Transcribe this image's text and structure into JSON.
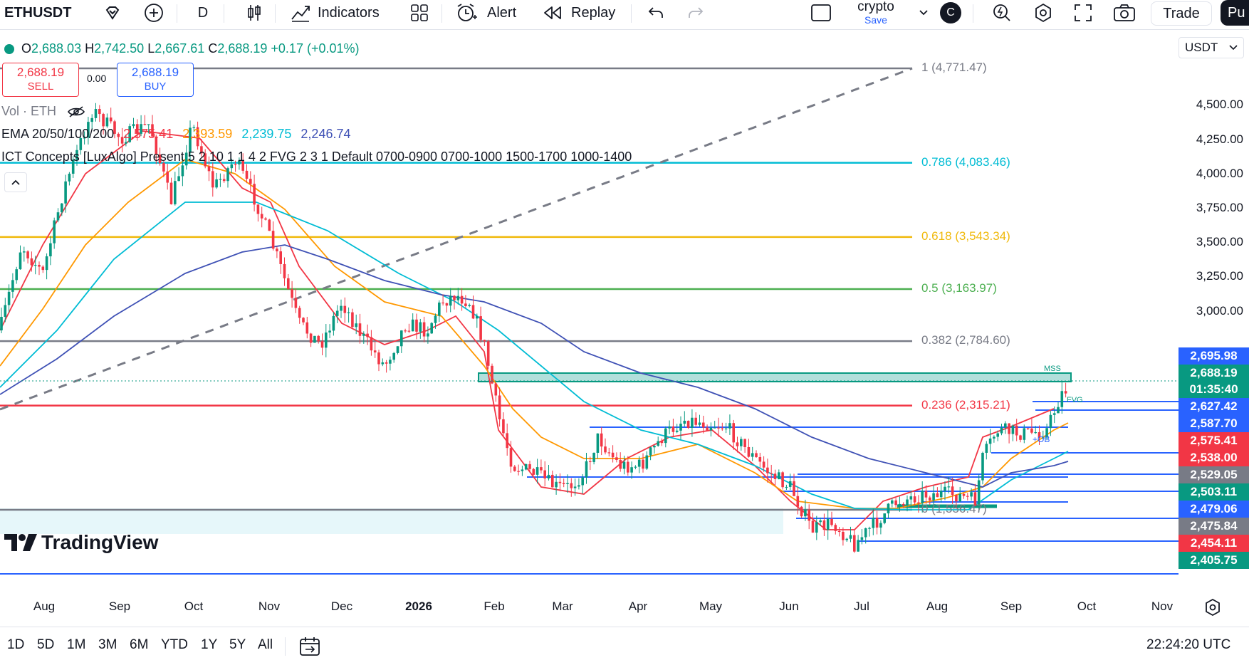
{
  "toolbar": {
    "symbol": "ETHUSDT",
    "interval": "D",
    "indicators_label": "Indicators",
    "alert_label": "Alert",
    "replay_label": "Replay",
    "layout_name": "crypto",
    "layout_save": "Save",
    "avatar_letter": "C",
    "trade_label": "Trade",
    "publish_label": "Pu"
  },
  "legend": {
    "open_k": "O",
    "open_v": "2,688.03",
    "high_k": "H",
    "high_v": "2,742.50",
    "low_k": "L",
    "low_v": "2,667.61",
    "close_k": "C",
    "close_v": "2,688.19",
    "change": "+0.17 (+0.01%)",
    "sell_price": "2,688.19",
    "sell_label": "SELL",
    "spread": "0.00",
    "buy_price": "2,688.19",
    "buy_label": "BUY",
    "vol_label": "Vol · ETH",
    "ema_label": "EMA 20/50/100/200",
    "ema_values": [
      "2,575.41",
      "2,393.59",
      "2,239.75",
      "2,246.74"
    ],
    "ict_label": "ICT Concepts [LuxAlgo] Present 5 2 10 1 1 4 2 FVG 2 3 1 Default 0700-0900 0700-1000 1500-1700 1000-1400"
  },
  "currency": "USDT",
  "fib_levels": [
    {
      "label": "1 (4,771.47)",
      "price": 4771.47,
      "color": "#787b86"
    },
    {
      "label": "0.786 (4,083.46)",
      "price": 4083.46,
      "color": "#00bcd4"
    },
    {
      "label": "0.618 (3,543.34)",
      "price": 3543.34,
      "color": "#f0b90b"
    },
    {
      "label": "0.5 (3,163.97)",
      "price": 3163.97,
      "color": "#4caf50"
    },
    {
      "label": "0.382 (2,784.60)",
      "price": 2784.6,
      "color": "#787b86"
    },
    {
      "label": "0.236 (2,315.21)",
      "price": 2315.21,
      "color": "#f23645"
    },
    {
      "label": "0 (1,556.47)",
      "price": 1556.47,
      "color": "#787b86"
    }
  ],
  "price_axis": {
    "ticks": [
      "4,500.00",
      "4,250.00",
      "4,000.00",
      "3,750.00",
      "3,500.00",
      "3,250.00",
      "3,000.00"
    ],
    "badges": [
      {
        "text": "2,695.98",
        "color": "#2962ff"
      },
      {
        "text": "2,688.19",
        "color": "#089981"
      },
      {
        "text": "01:35:40",
        "color": "#089981"
      },
      {
        "text": "2,627.42",
        "color": "#2962ff"
      },
      {
        "text": "2,587.70",
        "color": "#2962ff"
      },
      {
        "text": "2,575.41",
        "color": "#f23645"
      },
      {
        "text": "2,538.00",
        "color": "#f23645"
      },
      {
        "text": "2,529.05",
        "color": "#787b86"
      },
      {
        "text": "2,503.11",
        "color": "#089981"
      },
      {
        "text": "2,479.06",
        "color": "#2962ff"
      },
      {
        "text": "2,475.84",
        "color": "#787b86"
      },
      {
        "text": "2,454.11",
        "color": "#f23645"
      },
      {
        "text": "2,405.75",
        "color": "#089981"
      }
    ]
  },
  "annotations": {
    "mss": "MSS",
    "ob": "+OB",
    "fvg": "FVG"
  },
  "time_axis": [
    "Aug",
    "Sep",
    "Oct",
    "Nov",
    "Dec",
    "2026",
    "Feb",
    "Mar",
    "Apr",
    "May",
    "Jun",
    "Jul",
    "Aug",
    "Sep",
    "Oct",
    "Nov"
  ],
  "bottom_bar": {
    "ranges": [
      "1D",
      "5D",
      "1M",
      "3M",
      "6M",
      "YTD",
      "1Y",
      "5Y",
      "All"
    ],
    "clock": "22:24:20 UTC"
  },
  "watermark": "TradingView",
  "colors": {
    "up": "#089981",
    "down": "#f23645",
    "ema20": "#f23645",
    "ema50": "#ff9800",
    "ema100": "#00bcd4",
    "ema200": "#3f51b5",
    "accent": "#2962ff"
  }
}
